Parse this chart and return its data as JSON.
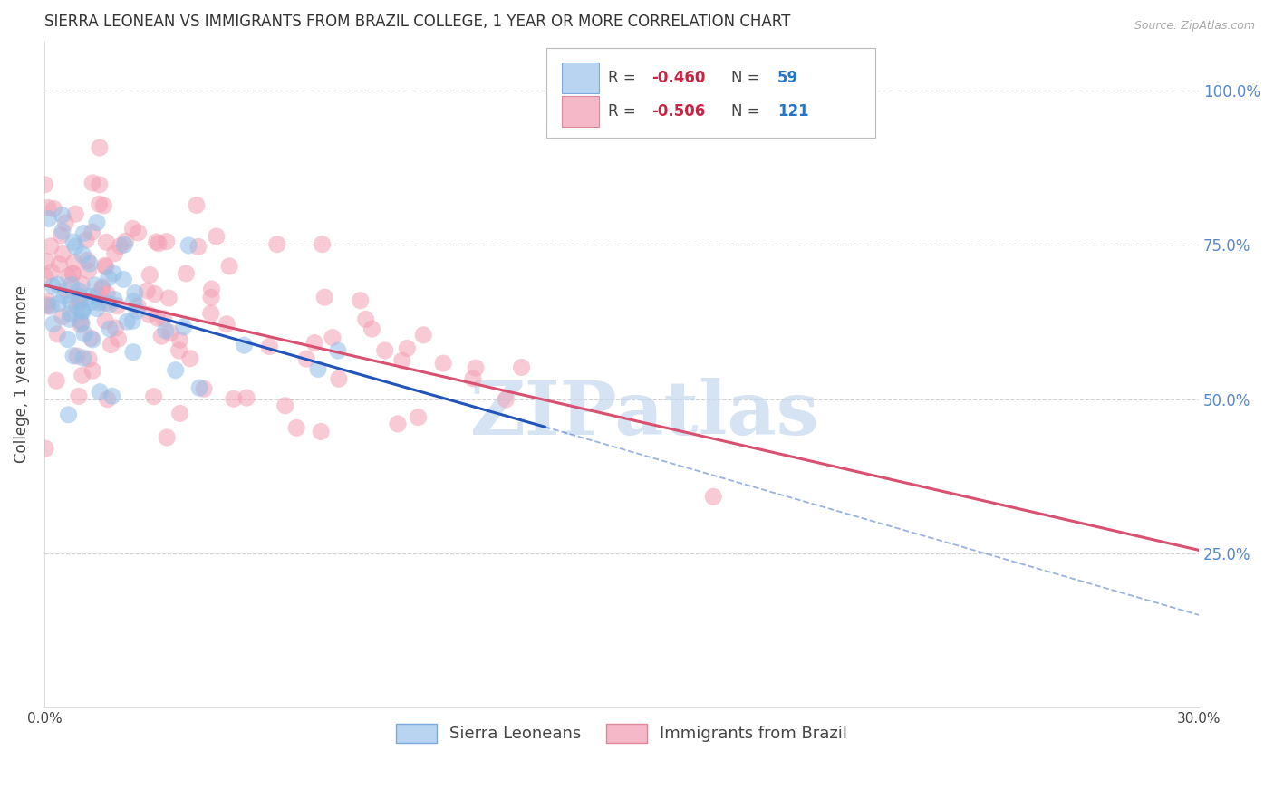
{
  "title": "SIERRA LEONEAN VS IMMIGRANTS FROM BRAZIL COLLEGE, 1 YEAR OR MORE CORRELATION CHART",
  "source": "Source: ZipAtlas.com",
  "ylabel": "College, 1 year or more",
  "right_yticklabels": [
    "25.0%",
    "50.0%",
    "75.0%",
    "100.0%"
  ],
  "right_yticks": [
    0.25,
    0.5,
    0.75,
    1.0
  ],
  "series1_label": "Sierra Leoneans",
  "series1_R": -0.46,
  "series1_N": 59,
  "series1_color": "#92bfe8",
  "series1_line_color": "#2255bb",
  "series2_label": "Immigrants from Brazil",
  "series2_R": -0.506,
  "series2_N": 121,
  "series2_color": "#f4a0b5",
  "series2_line_color": "#d95070",
  "background_color": "#ffffff",
  "grid_color": "#cccccc",
  "xlim": [
    0.0,
    0.3
  ],
  "ylim": [
    0.0,
    1.08
  ],
  "title_fontsize": 12,
  "axis_label_fontsize": 12,
  "tick_fontsize": 11,
  "legend_fontsize": 12,
  "watermark_text": "ZIPatlas",
  "watermark_color": "#c5d8ef",
  "line1_x0": 0.0,
  "line1_y0": 0.685,
  "line1_x1": 0.13,
  "line1_y1": 0.455,
  "line1_dash_x1": 0.3,
  "line1_dash_y1": 0.15,
  "line2_x0": 0.0,
  "line2_y0": 0.685,
  "line2_x1": 0.3,
  "line2_y1": 0.255
}
